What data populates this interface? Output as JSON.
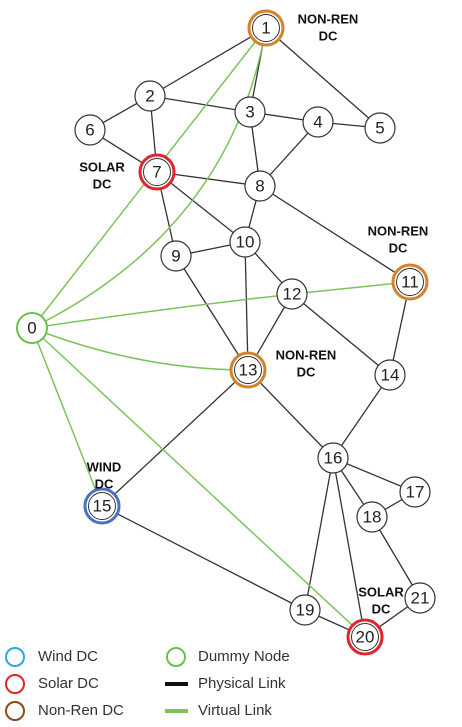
{
  "nodes": [
    "0",
    "1",
    "2",
    "3",
    "4",
    "5",
    "6",
    "7",
    "8",
    "9",
    "10",
    "11",
    "12",
    "13",
    "14",
    "15",
    "16",
    "17",
    "18",
    "19",
    "20",
    "21"
  ],
  "annotations": [
    [
      "NON-REN",
      "DC"
    ],
    [
      "SOLAR",
      "DC"
    ],
    [
      "NON-REN",
      "DC"
    ],
    [
      "NON-REN",
      "DC"
    ],
    [
      "WIND",
      "DC"
    ],
    [
      "SOLAR",
      "DC"
    ]
  ],
  "legend": [
    "Wind DC",
    "Solar DC",
    "Non-Ren DC",
    "Dummy Node",
    "Physical Link",
    "Virtual Link"
  ]
}
